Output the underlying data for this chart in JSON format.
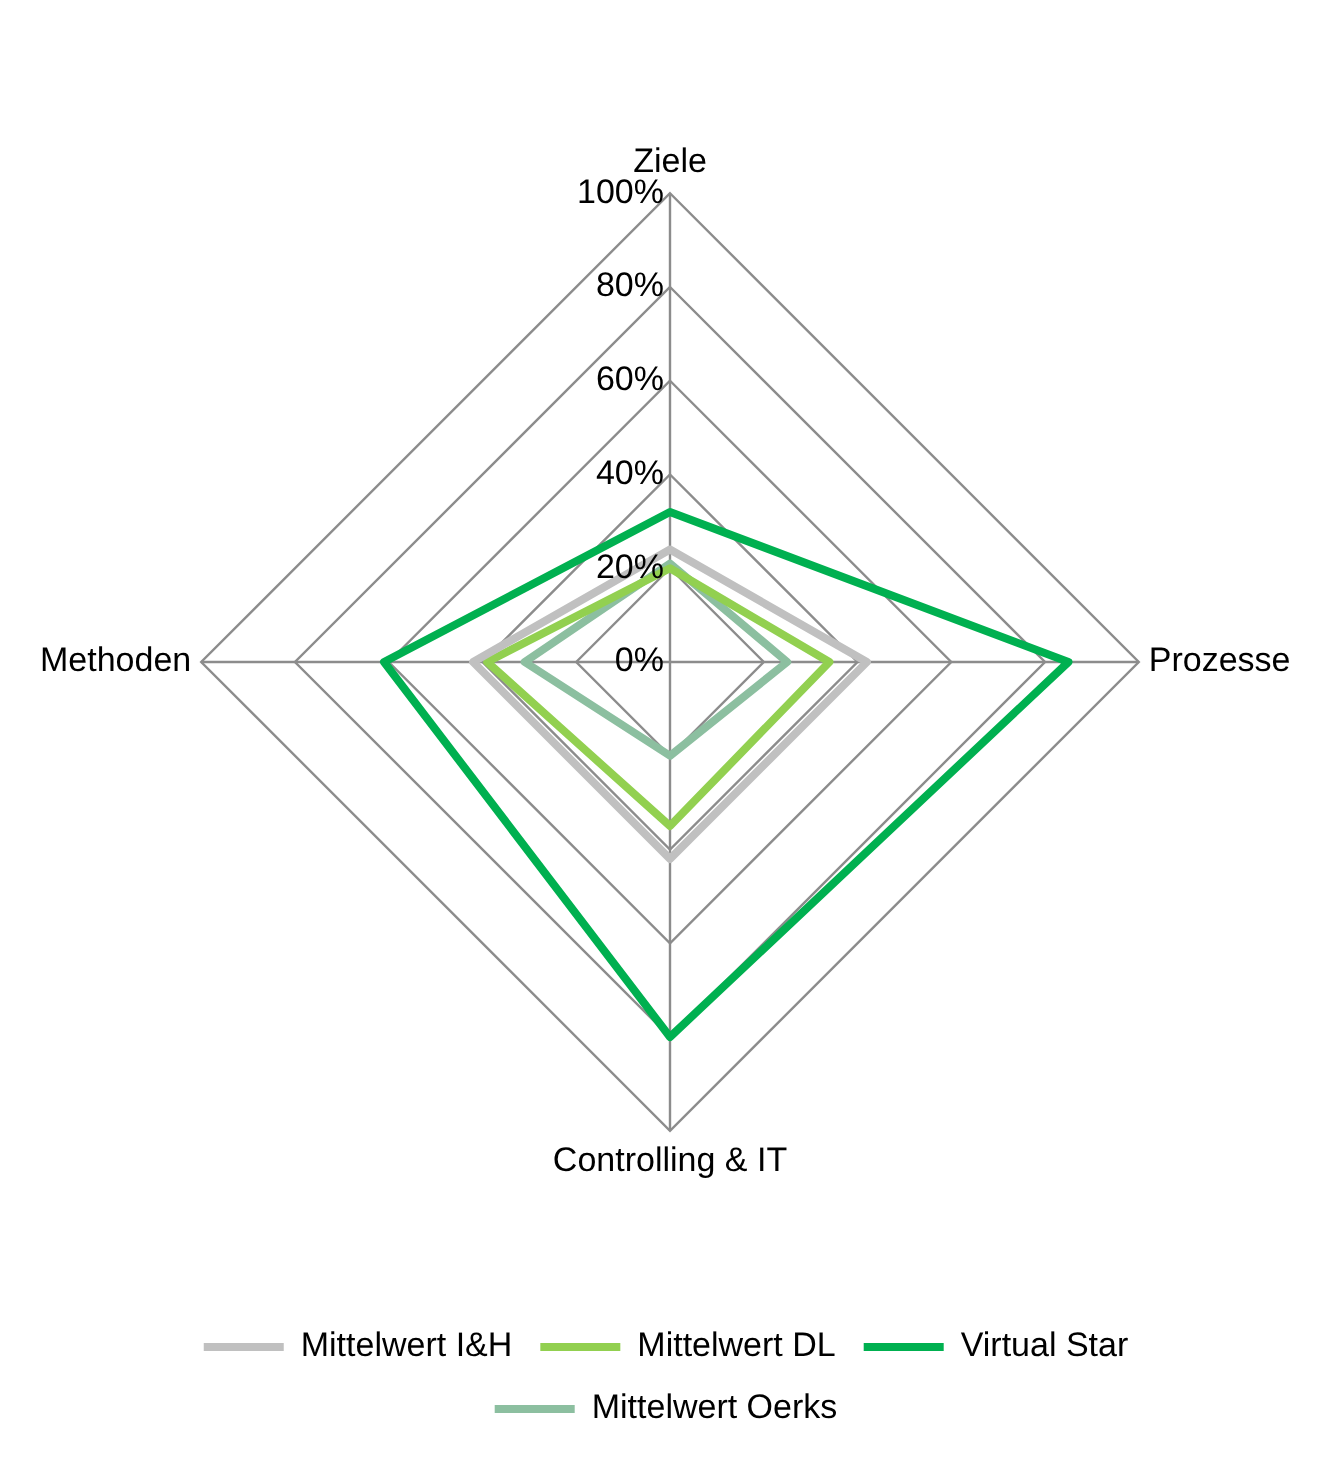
{
  "chart_data": {
    "type": "radar",
    "categories": [
      "Ziele",
      "Prozesse",
      "Controlling & IT",
      "Methoden"
    ],
    "series": [
      {
        "name": "Mittelwert I&H",
        "color": "#c0c0c0",
        "values": [
          24,
          42,
          42,
          42
        ]
      },
      {
        "name": "Mittelwert DL",
        "color": "#92d050",
        "values": [
          20,
          34,
          35,
          39
        ]
      },
      {
        "name": "Virtual Star",
        "color": "#00b050",
        "values": [
          32,
          85,
          80,
          61
        ]
      },
      {
        "name": "Mittelwert Oerks",
        "color": "#8cbfa0",
        "values": [
          21,
          25,
          20,
          31
        ]
      }
    ],
    "ylim": [
      0,
      100
    ],
    "yticks": [
      {
        "value": 0,
        "label": "0%"
      },
      {
        "value": 20,
        "label": "20%"
      },
      {
        "value": 40,
        "label": "40%"
      },
      {
        "value": 60,
        "label": "60%"
      },
      {
        "value": 80,
        "label": "80%"
      },
      {
        "value": 100,
        "label": "100%"
      }
    ],
    "grid": true,
    "legend": "bottom",
    "marker": "none",
    "line_style": "solid"
  }
}
